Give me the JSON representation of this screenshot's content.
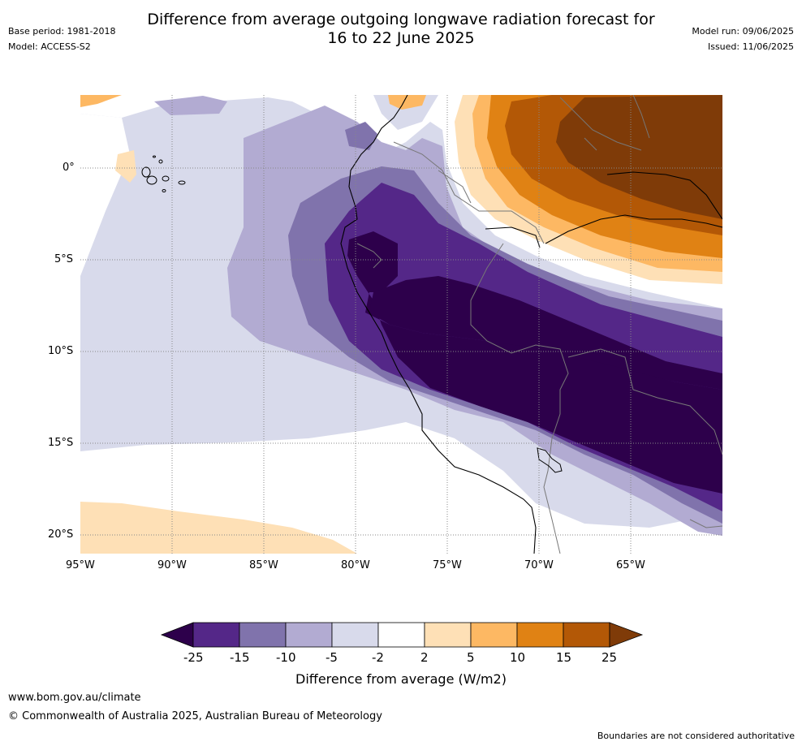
{
  "header": {
    "base_period": "Base period: 1981-2018",
    "model": "Model: ACCESS-S2",
    "title_line1": "Difference from average outgoing longwave radiation forecast for",
    "title_line2": "16 to 22 June 2025",
    "model_run": "Model run: 09/06/2025",
    "issued": "Issued: 11/06/2025"
  },
  "map": {
    "lat_labels": [
      "0°",
      "5°S",
      "10°S",
      "15°S",
      "20°S"
    ],
    "lon_labels": [
      "95°W",
      "90°W",
      "85°W",
      "80°W",
      "75°W",
      "70°W",
      "65°W"
    ],
    "gridlines": "dotted"
  },
  "colorbar": {
    "ticks": [
      "-25",
      "-15",
      "-10",
      "-5",
      "-2",
      "2",
      "5",
      "10",
      "15",
      "25"
    ],
    "label": "Difference from average (W/m2)",
    "colors": [
      "#2d004b",
      "#542788",
      "#8073ac",
      "#b2abd2",
      "#d8daeb",
      "#ffffff",
      "#fee0b6",
      "#fdb863",
      "#e08214",
      "#b35806",
      "#7f3b08"
    ]
  },
  "footer": {
    "url": "www.bom.gov.au/climate",
    "copyright": "© Commonwealth of Australia 2025, Australian Bureau of Meteorology",
    "disclaimer": "Boundaries are not considered authoritative"
  }
}
